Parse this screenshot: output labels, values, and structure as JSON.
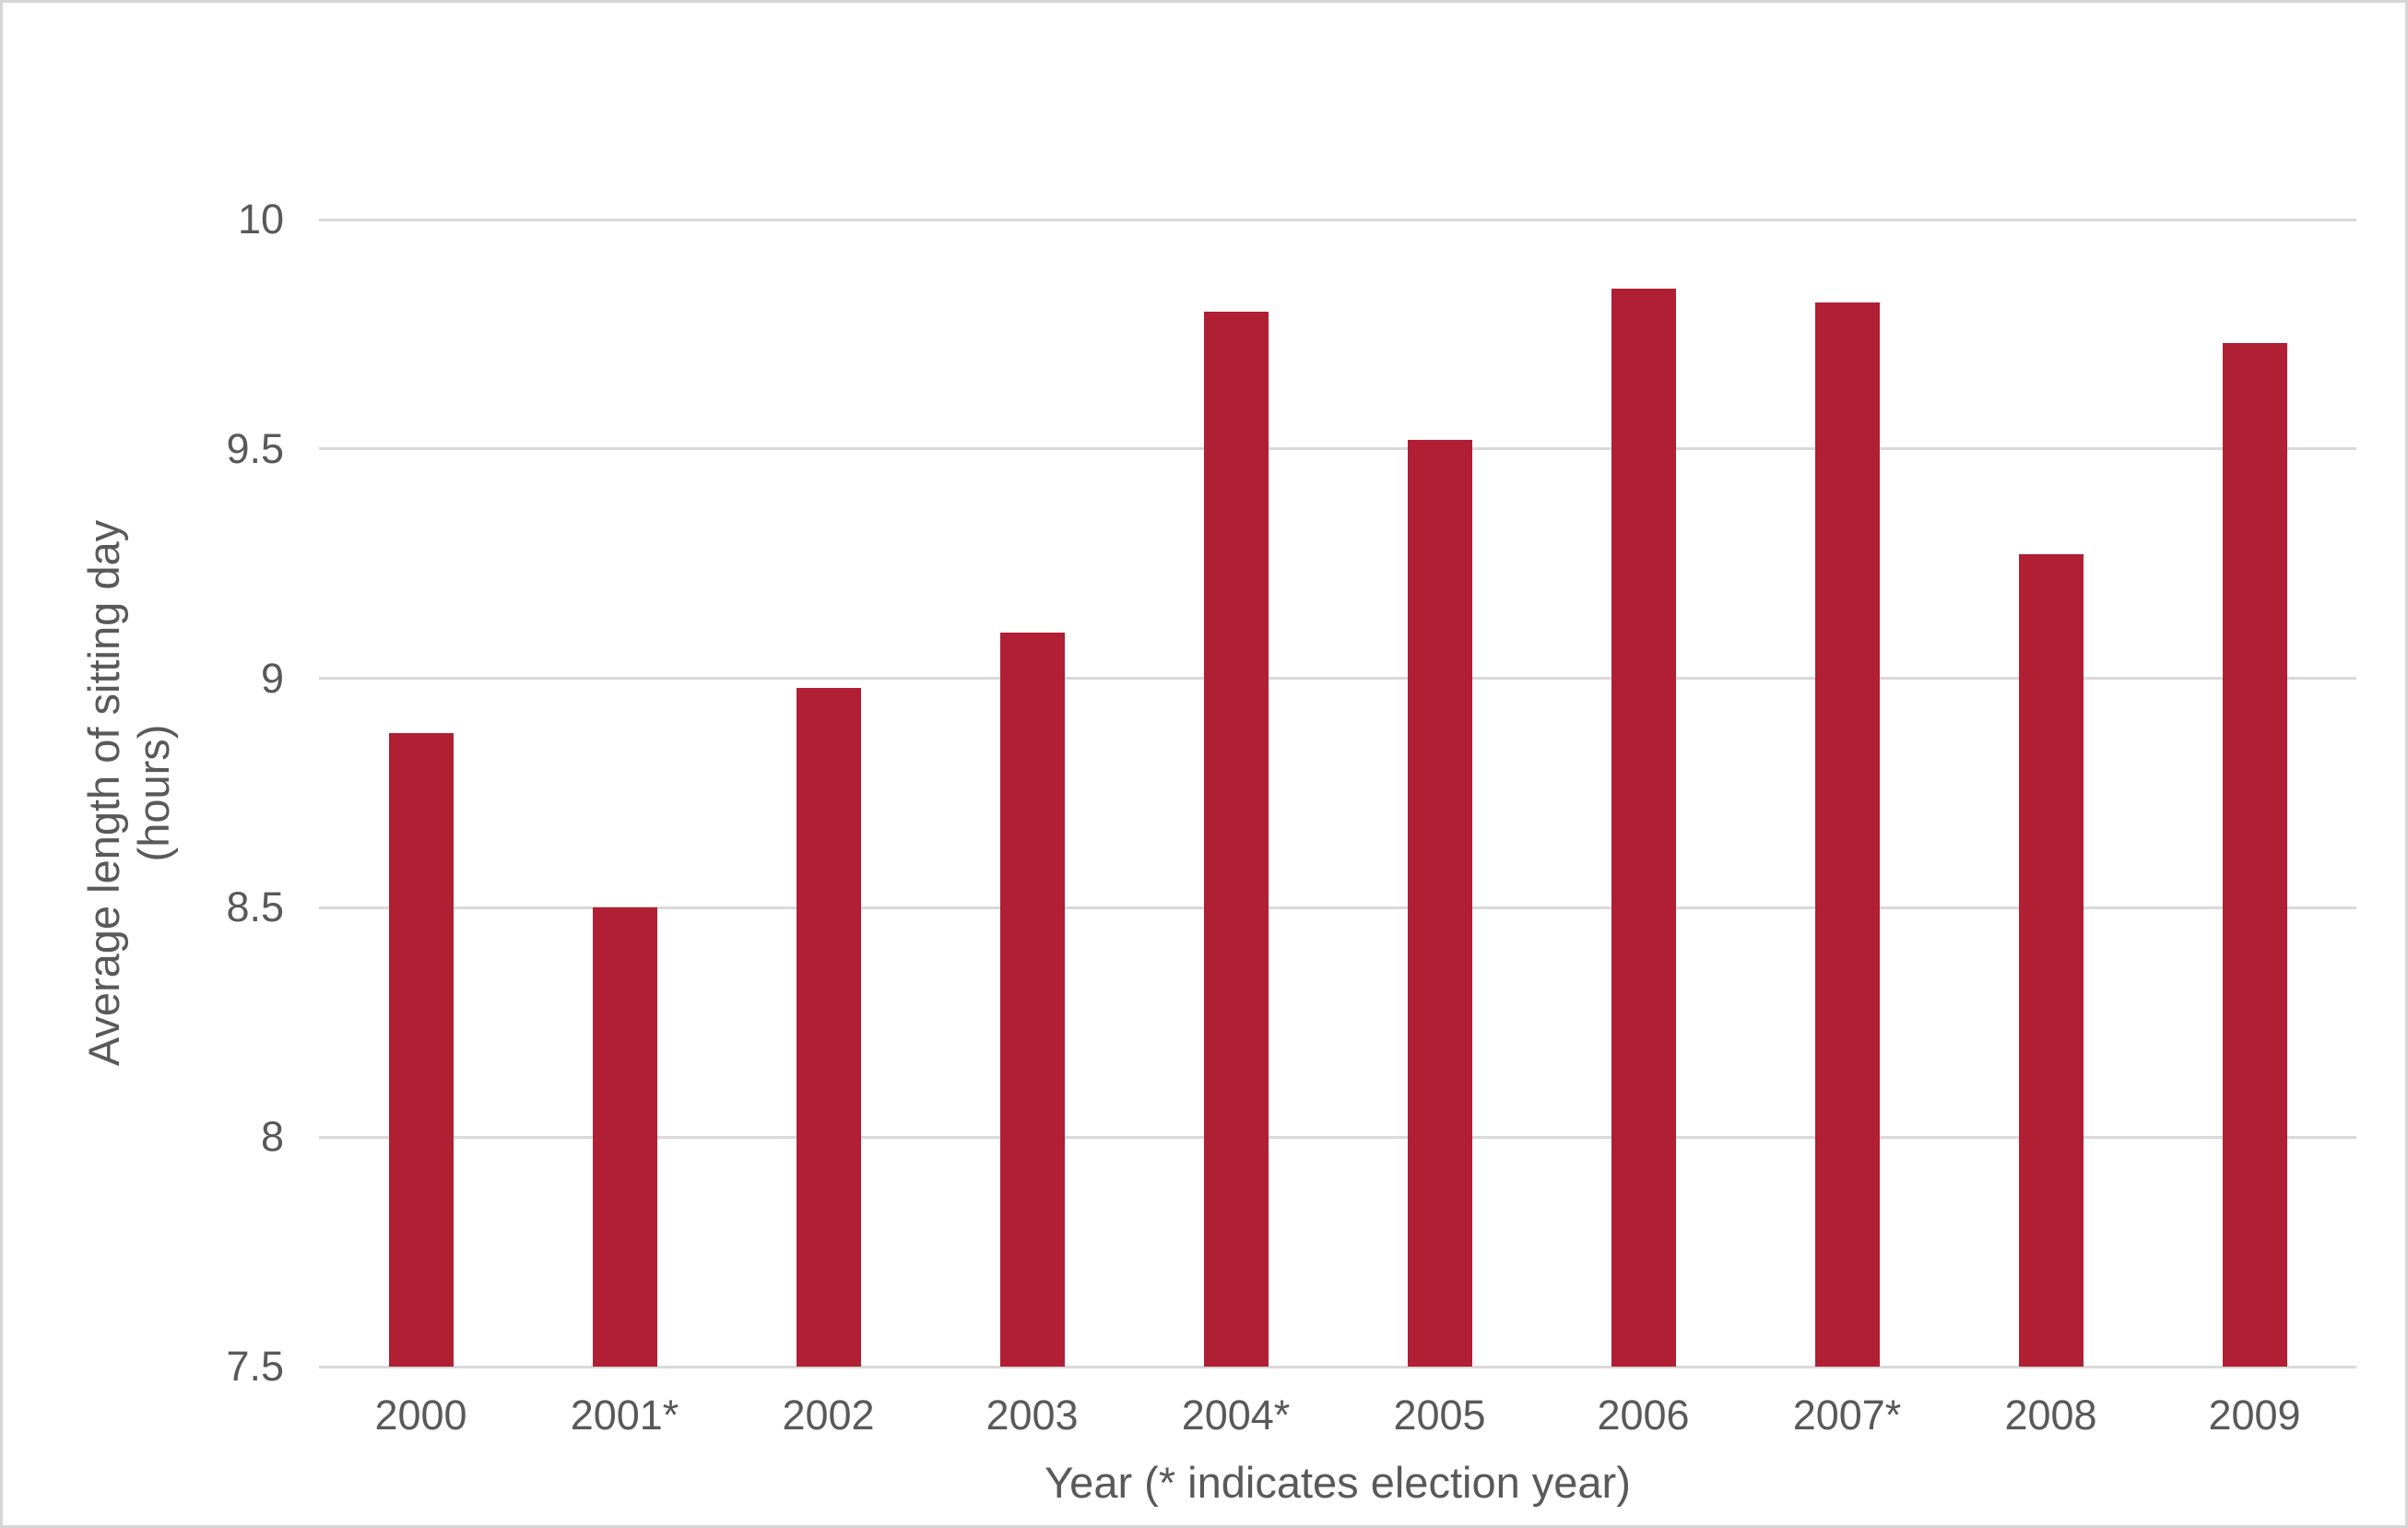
{
  "chart_data": {
    "type": "bar",
    "title": "",
    "categories": [
      "2000",
      "2001*",
      "2002",
      "2003",
      "2004*",
      "2005",
      "2006",
      "2007*",
      "2008",
      "2009"
    ],
    "values": [
      8.88,
      8.5,
      8.98,
      9.1,
      9.8,
      9.52,
      9.85,
      9.82,
      9.27,
      9.73
    ],
    "xlabel": "Year (* indicates election year)",
    "ylabel": "Average length of sitting day (hours)",
    "ylabel_line1": "Average length of sitting day",
    "ylabel_line2": "(hours)",
    "ylim": [
      7.5,
      10
    ],
    "yticks": [
      7.5,
      8,
      8.5,
      9,
      9.5,
      10
    ],
    "grid": "horizontal gridlines on, vertical off",
    "legend": "none",
    "bar_color": "#B11F34",
    "gridline_color": "#D9D9D9",
    "axis_text_color": "#595959",
    "frame_border_color": "#D6D6D6",
    "background_color": "#FFFFFF"
  }
}
